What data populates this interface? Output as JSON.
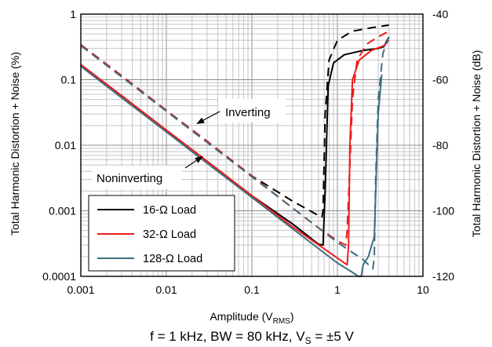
{
  "chart_data": {
    "type": "line",
    "x_scale": "log",
    "y_scale": "log",
    "xlabel_main": "Amplitude (V",
    "xlabel_sub": "RMS",
    "xlabel_end": ")",
    "ylabel_left": "Total Harmonic Distortion + Noise (%)",
    "ylabel_right": "Total Harmonic Distortion + Noise (dB)",
    "xlim": [
      0.001,
      10
    ],
    "ylim": [
      0.0001,
      1
    ],
    "x_ticks": [
      "0.001",
      "0.01",
      "0.1",
      "1",
      "10"
    ],
    "y_ticks_left": [
      "0.0001",
      "0.001",
      "0.01",
      "0.1",
      "1"
    ],
    "y_ticks_right": [
      "-120",
      "-100",
      "-80",
      "-60",
      "-40"
    ],
    "grid": true,
    "annotations": [
      "Inverting",
      "Noninverting"
    ],
    "caption": {
      "main": "f = 1 kHz, BW = 80 kHz, V",
      "sub": "S",
      "end": " = ±5 V"
    },
    "legend_position": "bottom-left",
    "series": [
      {
        "name": "16-Ω Load",
        "color": "#000000",
        "style": "solid",
        "x": [
          0.001,
          0.003,
          0.01,
          0.03,
          0.1,
          0.3,
          0.6,
          0.68,
          0.72,
          0.78,
          0.9,
          1.2,
          2.0,
          3.0,
          3.5,
          4.0
        ],
        "y": [
          0.17,
          0.057,
          0.017,
          0.0057,
          0.0017,
          0.00063,
          0.00031,
          0.0003,
          0.002,
          0.08,
          0.18,
          0.24,
          0.28,
          0.3,
          0.32,
          0.45
        ]
      },
      {
        "name": "16-Ω Load",
        "color": "#000000",
        "style": "dashed",
        "x": [
          0.001,
          0.003,
          0.01,
          0.03,
          0.1,
          0.3,
          0.6,
          0.66,
          0.68,
          0.72,
          0.8,
          1.0,
          1.5,
          2.5,
          4.0
        ],
        "y": [
          0.34,
          0.115,
          0.034,
          0.0115,
          0.0034,
          0.0014,
          0.00085,
          0.0008,
          0.001,
          0.03,
          0.2,
          0.4,
          0.55,
          0.62,
          0.68
        ]
      },
      {
        "name": "32-Ω Load",
        "color": "#ee1c1c",
        "style": "solid",
        "x": [
          0.001,
          0.003,
          0.01,
          0.03,
          0.1,
          0.3,
          1.0,
          1.3,
          1.35,
          1.4,
          1.5,
          1.8,
          2.5,
          3.5,
          4.0
        ],
        "y": [
          0.17,
          0.057,
          0.017,
          0.0057,
          0.0017,
          0.00057,
          0.00019,
          0.00015,
          0.0003,
          0.01,
          0.1,
          0.2,
          0.28,
          0.33,
          0.4
        ]
      },
      {
        "name": "32-Ω Load",
        "color": "#ee1c1c",
        "style": "dashed",
        "x": [
          0.001,
          0.003,
          0.01,
          0.03,
          0.1,
          0.3,
          0.6,
          1.0,
          1.25,
          1.3,
          1.4,
          1.5,
          1.7,
          2.2,
          3.0,
          4.0
        ],
        "y": [
          0.34,
          0.115,
          0.034,
          0.0115,
          0.0034,
          0.0011,
          0.00055,
          0.00035,
          0.0003,
          0.0005,
          0.005,
          0.05,
          0.2,
          0.35,
          0.45,
          0.55
        ]
      },
      {
        "name": "128-Ω Load",
        "color": "#3f6e82",
        "style": "solid",
        "x": [
          0.001,
          0.003,
          0.01,
          0.03,
          0.1,
          0.3,
          1.0,
          1.5,
          1.75,
          1.9,
          2.0,
          2.3,
          2.7,
          3.0,
          3.3
        ],
        "y": [
          0.16,
          0.053,
          0.016,
          0.0053,
          0.0016,
          0.00053,
          0.00016,
          0.000115,
          0.0001,
          0.0001,
          0.00015,
          0.0002,
          0.0004,
          0.03,
          0.12
        ]
      },
      {
        "name": "128-Ω Load",
        "color": "#3f6e82",
        "style": "dashed",
        "x": [
          0.001,
          0.003,
          0.01,
          0.03,
          0.1,
          0.3,
          1.0,
          2.0,
          2.6,
          2.7,
          2.8,
          3.0,
          3.4,
          4.0
        ],
        "y": [
          0.33,
          0.11,
          0.033,
          0.011,
          0.0033,
          0.0011,
          0.00033,
          0.00018,
          0.00013,
          0.0002,
          0.003,
          0.05,
          0.25,
          0.45
        ]
      }
    ]
  }
}
